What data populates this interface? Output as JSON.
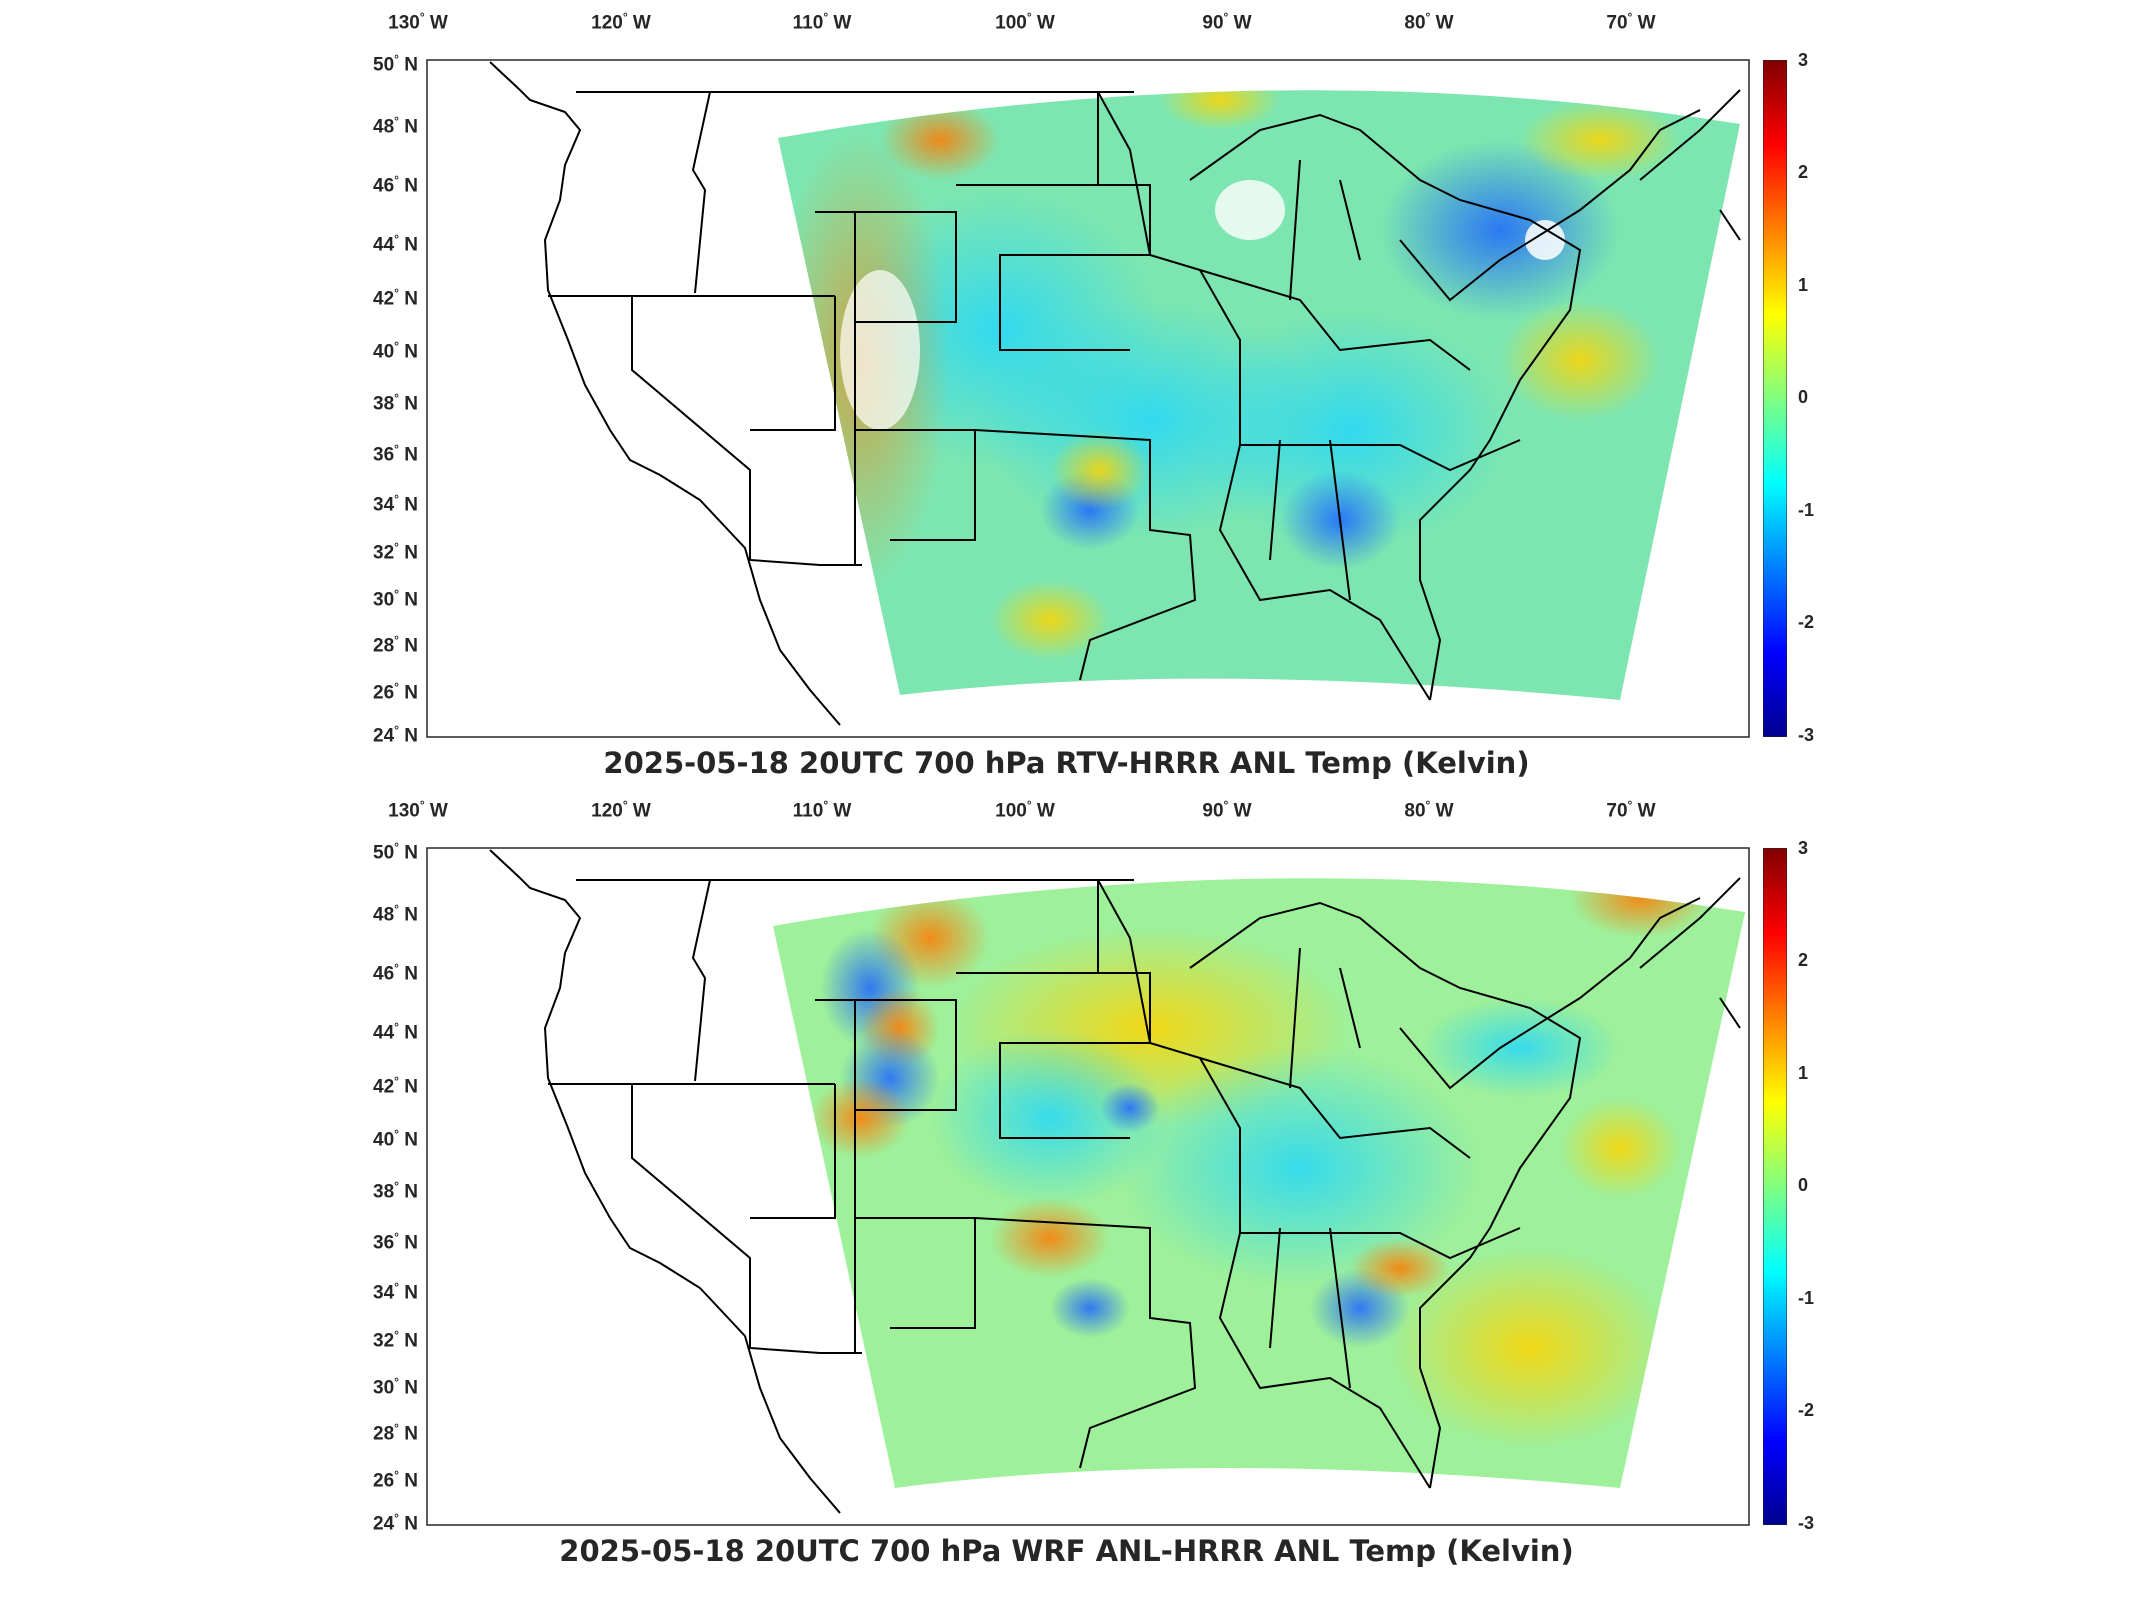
{
  "panels": [
    {
      "title": "2025-05-18 20UTC 700 hPa RTV-HRRR ANL Temp (Kelvin)",
      "field": "rtv"
    },
    {
      "title": "2025-05-18 20UTC 700 hPa WRF ANL-HRRR ANL Temp (Kelvin)",
      "field": "wrf"
    }
  ],
  "lon_labels": [
    "130",
    "120",
    "110",
    "100",
    "90",
    "80",
    "70"
  ],
  "lon_suffix": "W",
  "lat_labels": [
    "50",
    "48",
    "46",
    "44",
    "42",
    "40",
    "38",
    "36",
    "34",
    "32",
    "30",
    "28",
    "26",
    "24"
  ],
  "lat_suffix": "N",
  "degree_symbol": "°",
  "colorbar": {
    "ticks": [
      "3",
      "2",
      "1",
      "0",
      "-1",
      "-2",
      "-3"
    ],
    "min": -3,
    "max": 3,
    "colormap": "jet",
    "colors": [
      "#00008f",
      "#0000ff",
      "#00ffff",
      "#80ff80",
      "#ffff00",
      "#ff0000",
      "#800000"
    ]
  }
}
